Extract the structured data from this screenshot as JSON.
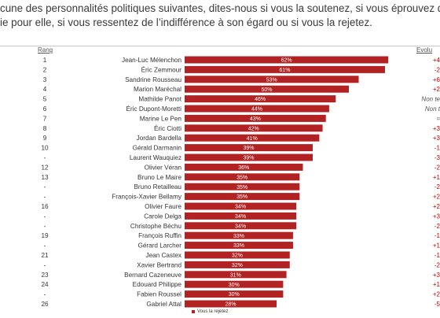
{
  "question": {
    "line1": "cune des personnalités politiques suivantes, dites-nous si vous la soutenez, si vous éprouvez d",
    "line2": "ie pour elle, si vous ressentez de l’indifférence à son égard ou si vous la rejetez."
  },
  "headers": {
    "rank": "Rang",
    "evolution": "Evolu"
  },
  "legend": {
    "label": "Vous la rejetez"
  },
  "colors": {
    "bar": "#b22222",
    "evo_negative": "#c00000",
    "evo_neutral": "#555555"
  },
  "chart_data": {
    "type": "bar",
    "orientation": "horizontal",
    "series": [
      {
        "name": "Vous la rejetez"
      }
    ],
    "rows": [
      {
        "rank": "1",
        "name": "Jean-Luc Mélenchon",
        "value": 62,
        "label": "62%",
        "evo": "+4"
      },
      {
        "rank": "2",
        "name": "Éric Zemmour",
        "value": 61,
        "label": "61%",
        "evo": "-2"
      },
      {
        "rank": "3",
        "name": "Sandrine Rousseau",
        "value": 53,
        "label": "53%",
        "evo": "+6"
      },
      {
        "rank": "4",
        "name": "Marion Maréchal",
        "value": 50,
        "label": "50%",
        "evo": "+2"
      },
      {
        "rank": "5",
        "name": "Mathilde Panot",
        "value": 46,
        "label": "46%",
        "evo": "Non te"
      },
      {
        "rank": "6",
        "name": "Éric Dupont-Moretti",
        "value": 44,
        "label": "44%",
        "evo": "Non t"
      },
      {
        "rank": "7",
        "name": "Marine Le Pen",
        "value": 43,
        "label": "43%",
        "evo": "="
      },
      {
        "rank": "8",
        "name": "Éric Ciotti",
        "value": 42,
        "label": "42%",
        "evo": "+3"
      },
      {
        "rank": "9",
        "name": "Jordan Bardella",
        "value": 41,
        "label": "41%",
        "evo": "+3"
      },
      {
        "rank": "10",
        "name": "Gérald Darmanin",
        "value": 39,
        "label": "39%",
        "evo": "-1"
      },
      {
        "rank": "-",
        "name": "Laurent Wauquiez",
        "value": 39,
        "label": "39%",
        "evo": "-3"
      },
      {
        "rank": "12",
        "name": "Olivier Véran",
        "value": 36,
        "label": "36%",
        "evo": "-2"
      },
      {
        "rank": "13",
        "name": "Bruno Le Maire",
        "value": 35,
        "label": "35%",
        "evo": "+1"
      },
      {
        "rank": "-",
        "name": "Bruno Retailleau",
        "value": 35,
        "label": "35%",
        "evo": "-2"
      },
      {
        "rank": "-",
        "name": "François-Xavier Bellamy",
        "value": 35,
        "label": "35%",
        "evo": "+2"
      },
      {
        "rank": "16",
        "name": "Olivier Faure",
        "value": 34,
        "label": "34%",
        "evo": "+2"
      },
      {
        "rank": "-",
        "name": "Carole Delga",
        "value": 34,
        "label": "34%",
        "evo": "+3"
      },
      {
        "rank": "-",
        "name": "Christophe Béchu",
        "value": 34,
        "label": "34%",
        "evo": "-2"
      },
      {
        "rank": "19",
        "name": "François Ruffin",
        "value": 33,
        "label": "33%",
        "evo": "-1"
      },
      {
        "rank": "-",
        "name": "Gérard Larcher",
        "value": 33,
        "label": "33%",
        "evo": "+1"
      },
      {
        "rank": "21",
        "name": "Jean Castex",
        "value": 32,
        "label": "32%",
        "evo": "-1"
      },
      {
        "rank": "-",
        "name": "Xavier Bertrand",
        "value": 32,
        "label": "32%",
        "evo": "-2"
      },
      {
        "rank": "23",
        "name": "Bernard Cazeneuve",
        "value": 31,
        "label": "31%",
        "evo": "+3"
      },
      {
        "rank": "24",
        "name": "Edouard Philippe",
        "value": 30,
        "label": "30%",
        "evo": "+1"
      },
      {
        "rank": "-",
        "name": "Fabien Roussel",
        "value": 30,
        "label": "30%",
        "evo": "+2"
      },
      {
        "rank": "26",
        "name": "Gabriel Attal",
        "value": 28,
        "label": "28%",
        "evo": "-5"
      }
    ],
    "legend": "bottom",
    "grid": false
  }
}
